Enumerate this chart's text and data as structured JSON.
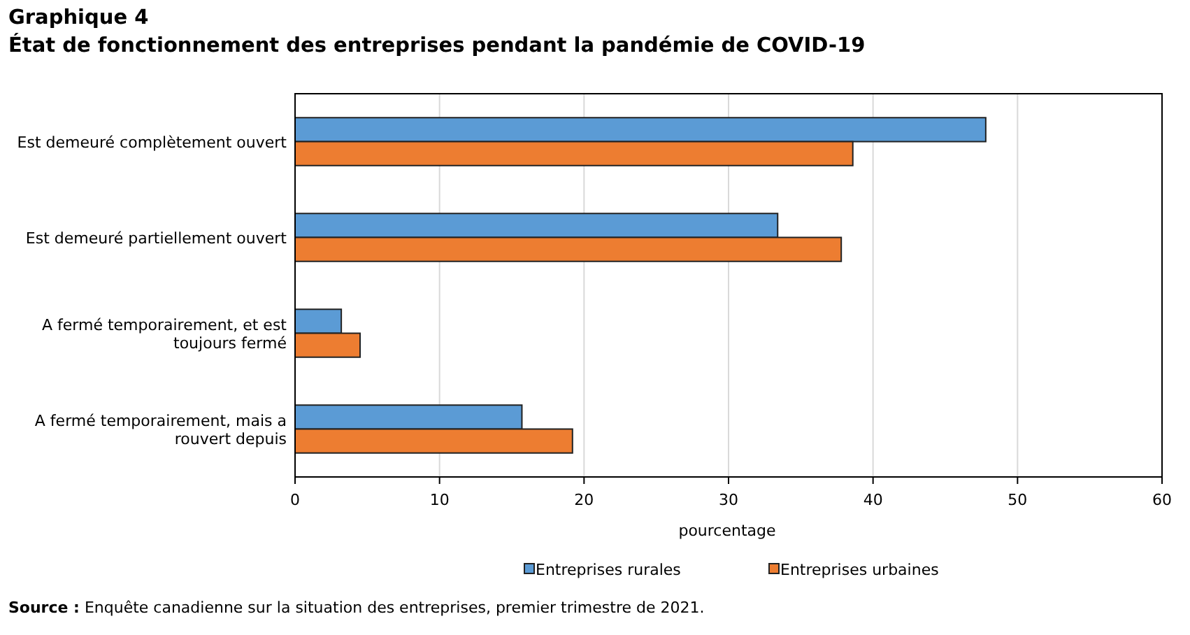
{
  "chart_data": {
    "type": "bar",
    "orientation": "horizontal",
    "title": "Graphique 4",
    "subtitle": "État de fonctionnement des entreprises pendant la pandémie de COVID-19",
    "xlabel": "pourcentage",
    "categories": [
      "Est demeuré complètement ouvert",
      "Est demeuré partiellement ouvert",
      "A fermé temporairement, et est toujours fermé",
      "A fermé temporairement, mais a rouvert depuis"
    ],
    "series": [
      {
        "name": "Entreprises rurales",
        "color": "#5b9bd5",
        "values": [
          47.8,
          33.4,
          3.2,
          15.7
        ]
      },
      {
        "name": "Entreprises urbaines",
        "color": "#ed7d31",
        "values": [
          38.6,
          37.8,
          4.5,
          19.2
        ]
      }
    ],
    "xlim": [
      0,
      60
    ],
    "xticks": [
      0,
      10,
      20,
      30,
      40,
      50,
      60
    ],
    "grid": "x",
    "legend": "bottom",
    "annotations": [
      "Source : Enquête canadienne sur la situation des entreprises, premier trimestre de 2021."
    ]
  }
}
